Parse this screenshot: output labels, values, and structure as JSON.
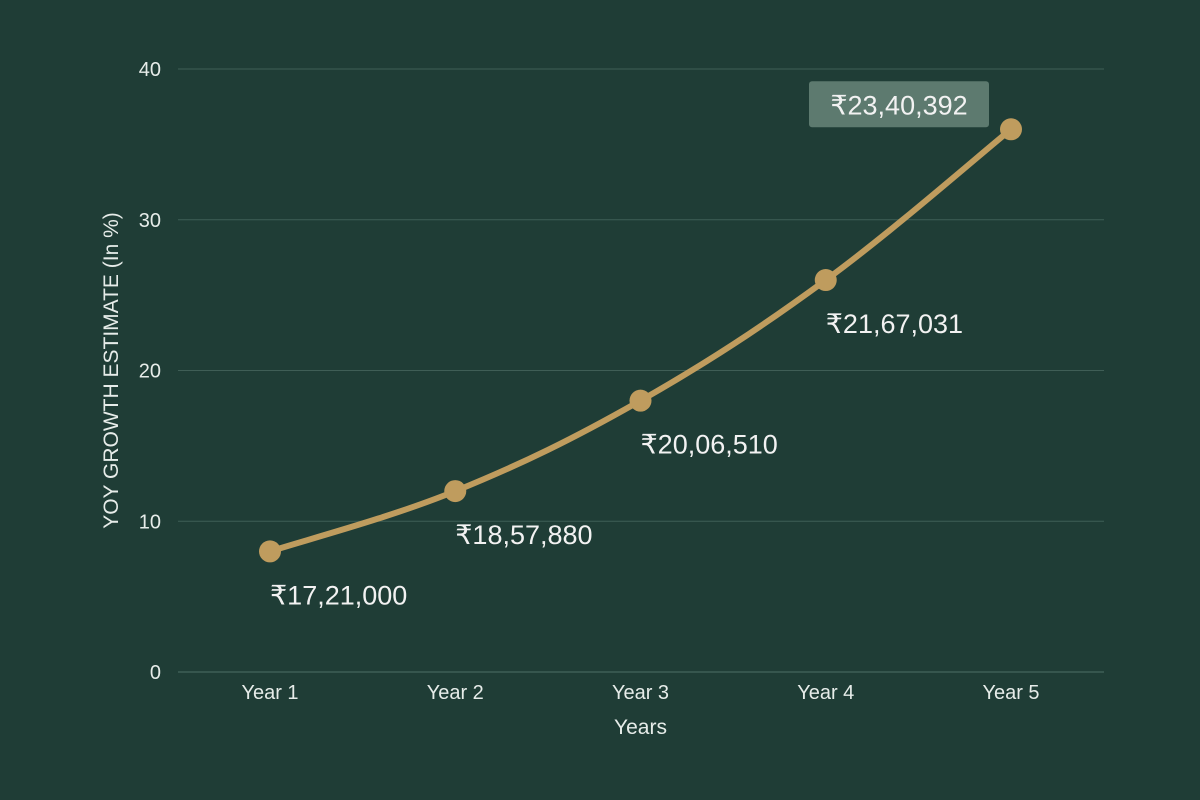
{
  "colors": {
    "background": "#1f3d36",
    "grid": "#3f5e56",
    "line": "#bf9c5e",
    "text": "#e6ece9",
    "highlight_box": "#5d7a6f"
  },
  "chart_data": {
    "type": "line",
    "title": "",
    "xlabel": "Years",
    "ylabel": "YOY GROWTH ESTIMATE (In %)",
    "ylim": [
      0,
      40
    ],
    "yticks": [
      0,
      10,
      20,
      30,
      40
    ],
    "grid": true,
    "categories": [
      "Year 1",
      "Year 2",
      "Year 3",
      "Year 4",
      "Year 5"
    ],
    "series": [
      {
        "values": [
          8,
          12,
          18,
          26,
          36
        ],
        "labels": [
          "₹17,21,000",
          "₹18,57,880",
          "₹20,06,510",
          "₹21,67,031",
          "₹23,40,392"
        ],
        "highlighted_label_index": 4
      }
    ]
  }
}
